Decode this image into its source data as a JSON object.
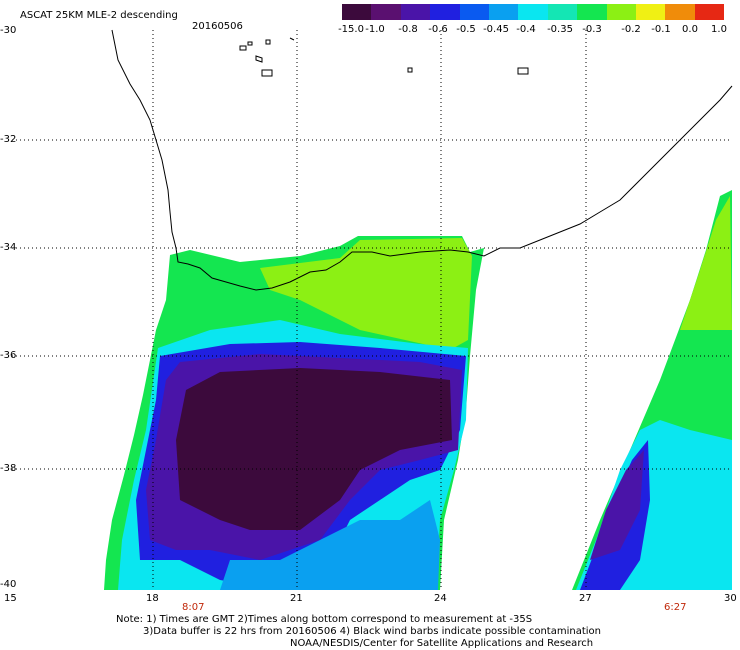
{
  "header": {
    "title": "ASCAT 25KM MLE-2 descending",
    "date": "20160506"
  },
  "colorbar": {
    "labels": [
      "-15.0",
      "-1.0",
      "-0.8",
      "-0.6",
      "-0.5",
      "-0.45",
      "-0.4",
      "-0.35",
      "-0.3",
      "-0.2",
      "-0.1",
      "0.0",
      "1.0"
    ],
    "colors": [
      "#3c0a3c",
      "#5a1070",
      "#4a14a8",
      "#2020e0",
      "#0a5af0",
      "#0aa0f0",
      "#0ae6f0",
      "#14e6b4",
      "#14e650",
      "#8cf014",
      "#f0f014",
      "#f08c0a",
      "#e62814"
    ]
  },
  "axes": {
    "lat_labels": [
      "-30",
      "-32",
      "-34",
      "-36",
      "-38",
      "-40"
    ],
    "lon_labels": [
      "15",
      "18",
      "21",
      "24",
      "27",
      "30"
    ]
  },
  "pass_times": [
    "8:07",
    "6:27"
  ],
  "notes": [
    "Note: 1) Times are GMT 2)Times along bottom correspond to measurement at -35S",
    "3)Data buffer is 22 hrs from 20160506 4) Black wind barbs indicate possible contamination",
    "NOAA/NESDIS/Center for Satellite Applications and Research"
  ]
}
